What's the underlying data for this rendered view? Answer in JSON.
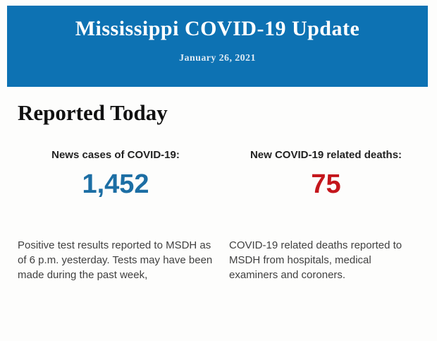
{
  "banner": {
    "title": "Mississippi COVID-19 Update",
    "date": "January 26, 2021",
    "background": "#0d72b3"
  },
  "section": {
    "heading": "Reported Today"
  },
  "stats": {
    "cases": {
      "label": "News cases of COVID-19:",
      "value": "1,452",
      "color": "#1c6ea4",
      "description": "Positive test results reported to MSDH as of 6 p.m. yesterday. Tests may have been made during the past week,"
    },
    "deaths": {
      "label": "New COVID-19 related deaths:",
      "value": "75",
      "color": "#c4161c",
      "description": "COVID-19 related deaths reported to MSDH from hospitals, medical examiners and coroners."
    }
  }
}
